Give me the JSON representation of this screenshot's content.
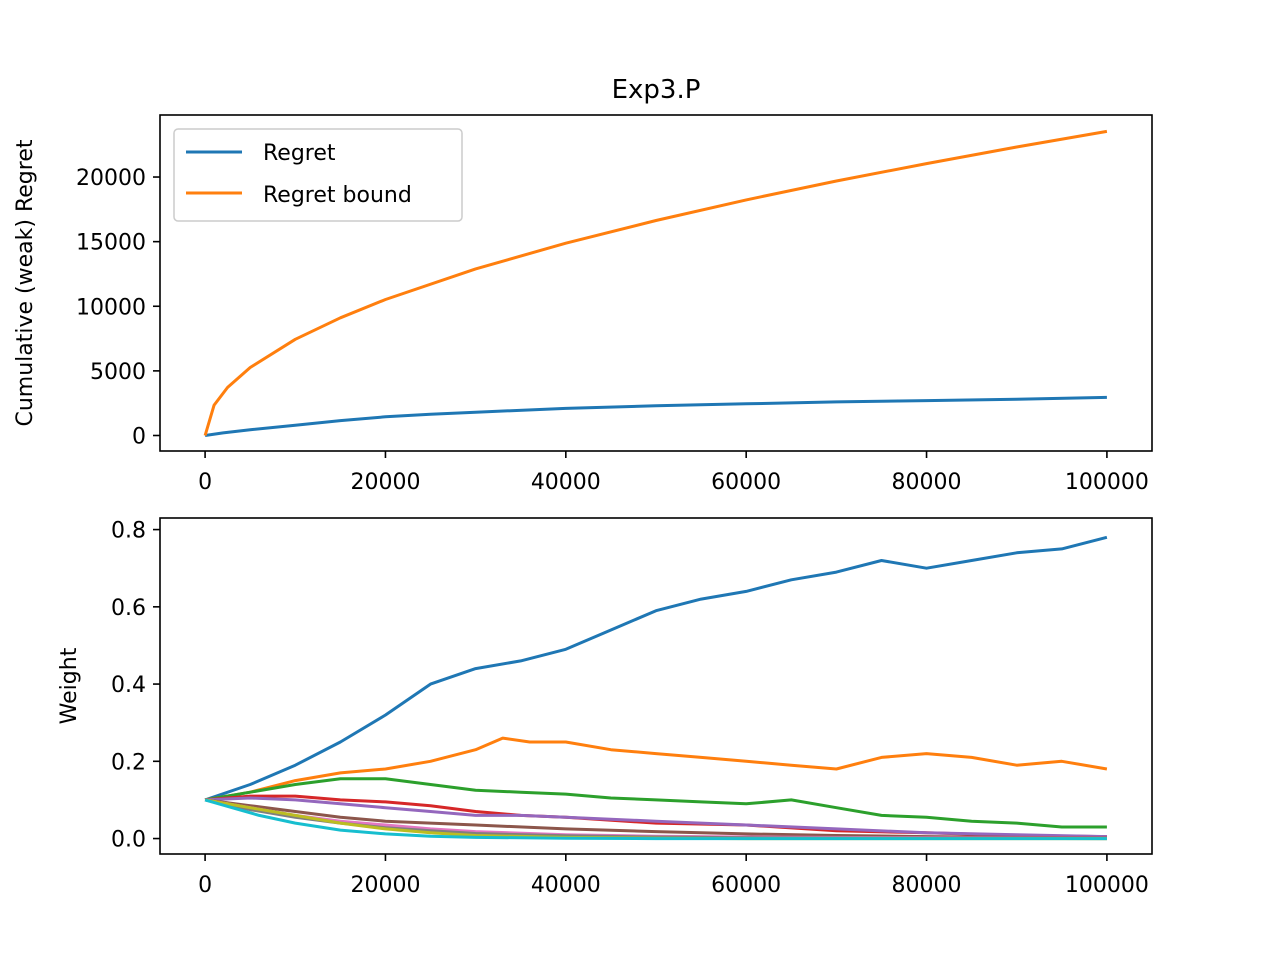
{
  "chart_data": [
    {
      "type": "line",
      "title": "Exp3.P",
      "xlabel": "",
      "ylabel": "Cumulative (weak) Regret",
      "xlim": [
        -5000,
        105000
      ],
      "ylim": [
        -1200,
        24800
      ],
      "xticks": [
        0,
        20000,
        40000,
        60000,
        80000,
        100000
      ],
      "xtick_labels": [
        "0",
        "20000",
        "40000",
        "60000",
        "80000",
        "100000"
      ],
      "yticks": [
        0,
        5000,
        10000,
        15000,
        20000
      ],
      "ytick_labels": [
        "0",
        "5000",
        "10000",
        "15000",
        "20000"
      ],
      "grid": false,
      "legend": "top-left",
      "series": [
        {
          "name": "Regret",
          "color": "#1f77b4",
          "x": [
            0,
            2000,
            5000,
            10000,
            15000,
            20000,
            25000,
            30000,
            40000,
            50000,
            60000,
            70000,
            80000,
            90000,
            100000
          ],
          "values": [
            0,
            200,
            450,
            800,
            1150,
            1450,
            1650,
            1800,
            2100,
            2300,
            2450,
            2600,
            2700,
            2800,
            2950
          ]
        },
        {
          "name": "Regret bound",
          "color": "#ff7f0e",
          "x": [
            0,
            1000,
            2500,
            5000,
            10000,
            15000,
            20000,
            30000,
            40000,
            50000,
            60000,
            70000,
            80000,
            90000,
            100000
          ],
          "values": [
            0,
            2350,
            3720,
            5260,
            7440,
            9110,
            10520,
            12890,
            14880,
            16640,
            18230,
            19690,
            21040,
            22320,
            23530
          ]
        }
      ]
    },
    {
      "type": "line",
      "title": "",
      "xlabel": "",
      "ylabel": "Weight",
      "xlim": [
        -5000,
        105000
      ],
      "ylim": [
        -0.04,
        0.83
      ],
      "xticks": [
        0,
        20000,
        40000,
        60000,
        80000,
        100000
      ],
      "xtick_labels": [
        "0",
        "20000",
        "40000",
        "60000",
        "80000",
        "100000"
      ],
      "yticks": [
        0.0,
        0.2,
        0.4,
        0.6,
        0.8
      ],
      "ytick_labels": [
        "0.0",
        "0.2",
        "0.4",
        "0.6",
        "0.8"
      ],
      "grid": false,
      "series": [
        {
          "color": "#1f77b4",
          "x": [
            0,
            5000,
            10000,
            15000,
            20000,
            25000,
            30000,
            35000,
            40000,
            45000,
            50000,
            55000,
            60000,
            65000,
            70000,
            75000,
            80000,
            85000,
            90000,
            95000,
            100000
          ],
          "values": [
            0.1,
            0.14,
            0.19,
            0.25,
            0.32,
            0.4,
            0.44,
            0.46,
            0.49,
            0.54,
            0.59,
            0.62,
            0.64,
            0.67,
            0.69,
            0.72,
            0.7,
            0.72,
            0.74,
            0.75,
            0.78
          ]
        },
        {
          "color": "#ff7f0e",
          "x": [
            0,
            5000,
            10000,
            15000,
            20000,
            25000,
            30000,
            33000,
            36000,
            40000,
            45000,
            50000,
            55000,
            60000,
            65000,
            70000,
            75000,
            80000,
            85000,
            90000,
            95000,
            100000
          ],
          "values": [
            0.1,
            0.12,
            0.15,
            0.17,
            0.18,
            0.2,
            0.23,
            0.26,
            0.25,
            0.25,
            0.23,
            0.22,
            0.21,
            0.2,
            0.19,
            0.18,
            0.21,
            0.22,
            0.21,
            0.19,
            0.2,
            0.18
          ]
        },
        {
          "color": "#2ca02c",
          "x": [
            0,
            5000,
            10000,
            15000,
            20000,
            25000,
            30000,
            35000,
            40000,
            45000,
            50000,
            55000,
            60000,
            65000,
            70000,
            75000,
            80000,
            85000,
            90000,
            95000,
            100000
          ],
          "values": [
            0.1,
            0.12,
            0.14,
            0.155,
            0.155,
            0.14,
            0.125,
            0.12,
            0.115,
            0.105,
            0.1,
            0.095,
            0.09,
            0.1,
            0.08,
            0.06,
            0.055,
            0.045,
            0.04,
            0.03,
            0.03
          ]
        },
        {
          "color": "#d62728",
          "x": [
            0,
            5000,
            10000,
            15000,
            20000,
            25000,
            30000,
            35000,
            40000,
            50000,
            60000,
            70000,
            80000,
            90000,
            100000
          ],
          "values": [
            0.1,
            0.11,
            0.11,
            0.1,
            0.095,
            0.085,
            0.07,
            0.06,
            0.055,
            0.04,
            0.035,
            0.02,
            0.015,
            0.008,
            0.005
          ]
        },
        {
          "color": "#9467bd",
          "x": [
            0,
            5000,
            10000,
            15000,
            20000,
            25000,
            30000,
            35000,
            40000,
            50000,
            60000,
            70000,
            80000,
            90000,
            100000
          ],
          "values": [
            0.1,
            0.105,
            0.1,
            0.09,
            0.08,
            0.07,
            0.06,
            0.06,
            0.055,
            0.045,
            0.035,
            0.025,
            0.015,
            0.01,
            0.005
          ]
        },
        {
          "color": "#8c564b",
          "x": [
            0,
            5000,
            10000,
            15000,
            20000,
            25000,
            30000,
            40000,
            50000,
            60000,
            70000,
            80000,
            90000,
            100000
          ],
          "values": [
            0.1,
            0.085,
            0.07,
            0.055,
            0.045,
            0.04,
            0.035,
            0.025,
            0.018,
            0.012,
            0.008,
            0.005,
            0.003,
            0.002
          ]
        },
        {
          "color": "#e377c2",
          "x": [
            0,
            5000,
            10000,
            15000,
            20000,
            25000,
            30000,
            40000,
            50000,
            60000,
            80000,
            100000
          ],
          "values": [
            0.1,
            0.08,
            0.06,
            0.045,
            0.035,
            0.025,
            0.018,
            0.01,
            0.006,
            0.004,
            0.002,
            0.001
          ]
        },
        {
          "color": "#7f7f7f",
          "x": [
            0,
            5000,
            10000,
            15000,
            20000,
            25000,
            30000,
            40000,
            50000,
            60000,
            80000,
            100000
          ],
          "values": [
            0.1,
            0.075,
            0.055,
            0.04,
            0.028,
            0.02,
            0.013,
            0.007,
            0.004,
            0.002,
            0.001,
            0.0
          ]
        },
        {
          "color": "#bcbd22",
          "x": [
            0,
            5000,
            10000,
            15000,
            20000,
            25000,
            30000,
            40000,
            50000,
            60000,
            80000,
            100000
          ],
          "values": [
            0.1,
            0.08,
            0.06,
            0.04,
            0.025,
            0.015,
            0.008,
            0.003,
            0.001,
            0.0,
            0.0,
            0.0
          ]
        },
        {
          "color": "#17becf",
          "x": [
            0,
            3000,
            6000,
            10000,
            15000,
            20000,
            25000,
            30000,
            40000,
            50000,
            60000,
            80000,
            100000
          ],
          "values": [
            0.1,
            0.08,
            0.06,
            0.04,
            0.022,
            0.012,
            0.006,
            0.003,
            0.001,
            0.0,
            0.0,
            0.0,
            0.0
          ]
        }
      ]
    }
  ]
}
